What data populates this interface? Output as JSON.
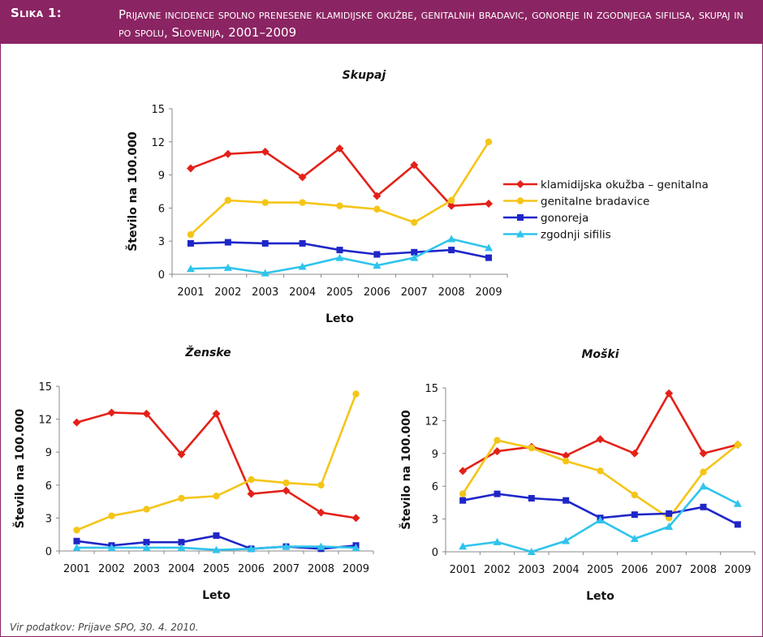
{
  "header": {
    "label": "Slika 1:",
    "title": "Prijavne incidence spolno prenesene klamidijske okužbe, genitalnih bradavic, gonoreje in zgodnjega sifilisa, skupaj in po spolu, Slovenija, 2001–2009"
  },
  "source": "Vir podatkov: Prijave SPO, 30. 4. 2010.",
  "colors": {
    "frame": "#8b2463",
    "klamidija": "#e32119",
    "bradavice": "#f5c518",
    "gonoreja": "#1f26c8",
    "sifilis": "#2fc4ec"
  },
  "legend": [
    {
      "key": "klamidija",
      "label": "klamidijska okužba – genitalna",
      "marker": "diamond"
    },
    {
      "key": "bradavice",
      "label": "genitalne bradavice",
      "marker": "circle"
    },
    {
      "key": "gonoreja",
      "label": "gonoreja",
      "marker": "square"
    },
    {
      "key": "sifilis",
      "label": "zgodnji sifilis",
      "marker": "triangle"
    }
  ],
  "chart_data": [
    {
      "type": "line",
      "title": "Skupaj",
      "xlabel": "Leto",
      "ylabel": "Število na 100.000",
      "ylim": [
        0,
        15
      ],
      "yticks": [
        0,
        3,
        6,
        9,
        12,
        15
      ],
      "categories": [
        "2001",
        "2002",
        "2003",
        "2004",
        "2005",
        "2006",
        "2007",
        "2008",
        "2009"
      ],
      "series": [
        {
          "key": "klamidija",
          "name": "klamidijska okužba – genitalna",
          "values": [
            9.6,
            10.9,
            11.1,
            8.8,
            11.4,
            7.1,
            9.9,
            6.2,
            6.4
          ]
        },
        {
          "key": "bradavice",
          "name": "genitalne bradavice",
          "values": [
            3.6,
            6.7,
            6.5,
            6.5,
            6.2,
            5.9,
            4.7,
            6.7,
            12.0
          ]
        },
        {
          "key": "gonoreja",
          "name": "gonoreja",
          "values": [
            2.8,
            2.9,
            2.8,
            2.8,
            2.2,
            1.8,
            2.0,
            2.2,
            1.5
          ]
        },
        {
          "key": "sifilis",
          "name": "zgodnji sifilis",
          "values": [
            0.5,
            0.6,
            0.1,
            0.7,
            1.5,
            0.8,
            1.5,
            3.2,
            2.4
          ]
        }
      ]
    },
    {
      "type": "line",
      "title": "Ženske",
      "xlabel": "Leto",
      "ylabel": "Število na 100.000",
      "ylim": [
        0,
        15
      ],
      "yticks": [
        0,
        3,
        6,
        9,
        12,
        15
      ],
      "categories": [
        "2001",
        "2002",
        "2003",
        "2004",
        "2005",
        "2006",
        "2007",
        "2008",
        "2009"
      ],
      "series": [
        {
          "key": "klamidija",
          "name": "klamidijska okužba – genitalna",
          "values": [
            11.7,
            12.6,
            12.5,
            8.8,
            12.5,
            5.2,
            5.5,
            3.5,
            3.0
          ]
        },
        {
          "key": "bradavice",
          "name": "genitalne bradavice",
          "values": [
            1.9,
            3.2,
            3.8,
            4.8,
            5.0,
            6.5,
            6.2,
            6.0,
            14.3
          ]
        },
        {
          "key": "gonoreja",
          "name": "gonoreja",
          "values": [
            0.9,
            0.5,
            0.8,
            0.8,
            1.4,
            0.2,
            0.4,
            0.2,
            0.5
          ]
        },
        {
          "key": "sifilis",
          "name": "zgodnji sifilis",
          "values": [
            0.3,
            0.3,
            0.3,
            0.3,
            0.1,
            0.2,
            0.4,
            0.4,
            0.3
          ]
        }
      ]
    },
    {
      "type": "line",
      "title": "Moški",
      "xlabel": "Leto",
      "ylabel": "Število na 100.000",
      "ylim": [
        0,
        15
      ],
      "yticks": [
        0,
        3,
        6,
        9,
        12,
        15
      ],
      "categories": [
        "2001",
        "2002",
        "2003",
        "2004",
        "2005",
        "2006",
        "2007",
        "2008",
        "2009"
      ],
      "series": [
        {
          "key": "klamidija",
          "name": "klamidijska okužba – genitalna",
          "values": [
            7.4,
            9.2,
            9.6,
            8.8,
            10.3,
            9.0,
            14.5,
            9.0,
            9.8
          ]
        },
        {
          "key": "bradavice",
          "name": "genitalne bradavice",
          "values": [
            5.3,
            10.2,
            9.5,
            8.3,
            7.4,
            5.2,
            3.1,
            7.3,
            9.8
          ]
        },
        {
          "key": "gonoreja",
          "name": "gonoreja",
          "values": [
            4.7,
            5.3,
            4.9,
            4.7,
            3.1,
            3.4,
            3.5,
            4.1,
            2.5
          ]
        },
        {
          "key": "sifilis",
          "name": "zgodnji sifilis",
          "values": [
            0.5,
            0.9,
            0.0,
            1.0,
            2.9,
            1.2,
            2.3,
            6.0,
            4.4
          ]
        }
      ]
    }
  ]
}
